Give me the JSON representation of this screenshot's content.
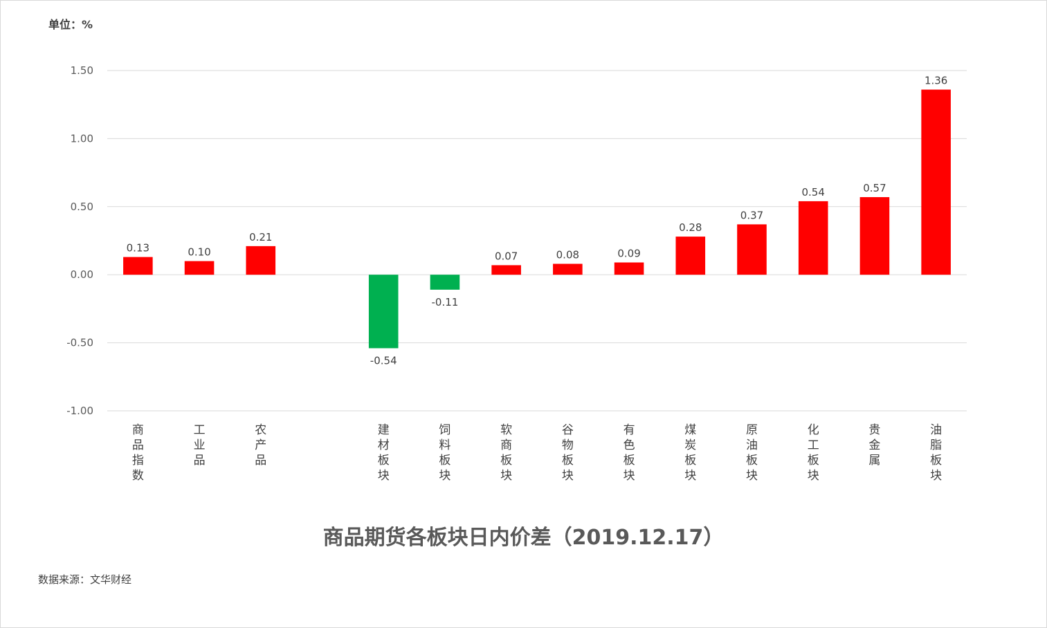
{
  "unit_label": "单位：%",
  "source_text": "数据来源：文华财经",
  "colors": {
    "positive": "#ff0000",
    "negative": "#00b050",
    "grid": "#d9d9d9"
  },
  "chart_data": {
    "type": "bar",
    "title": "商品期货各板块日内价差（2019.12.17）",
    "xlabel": "",
    "ylabel": "",
    "ylim": [
      -1.0,
      1.5
    ],
    "y_ticks": [
      "1.50",
      "1.00",
      "0.50",
      "0.00",
      "-0.50",
      "-1.00"
    ],
    "grid": true,
    "categories": [
      "商品指数",
      "工业品",
      "农产品",
      "",
      "建材板块",
      "饲料板块",
      "软商板块",
      "谷物板块",
      "有色板块",
      "煤炭板块",
      "原油板块",
      "化工板块",
      "贵金属",
      "油脂板块"
    ],
    "values": [
      0.13,
      0.1,
      0.21,
      null,
      -0.54,
      -0.11,
      0.07,
      0.08,
      0.09,
      0.28,
      0.37,
      0.54,
      0.57,
      1.36
    ],
    "data_labels": [
      "0.13",
      "0.10",
      "0.21",
      "",
      "-0.54",
      "-0.11",
      "0.07",
      "0.08",
      "0.09",
      "0.28",
      "0.37",
      "0.54",
      "0.57",
      "1.36"
    ]
  }
}
